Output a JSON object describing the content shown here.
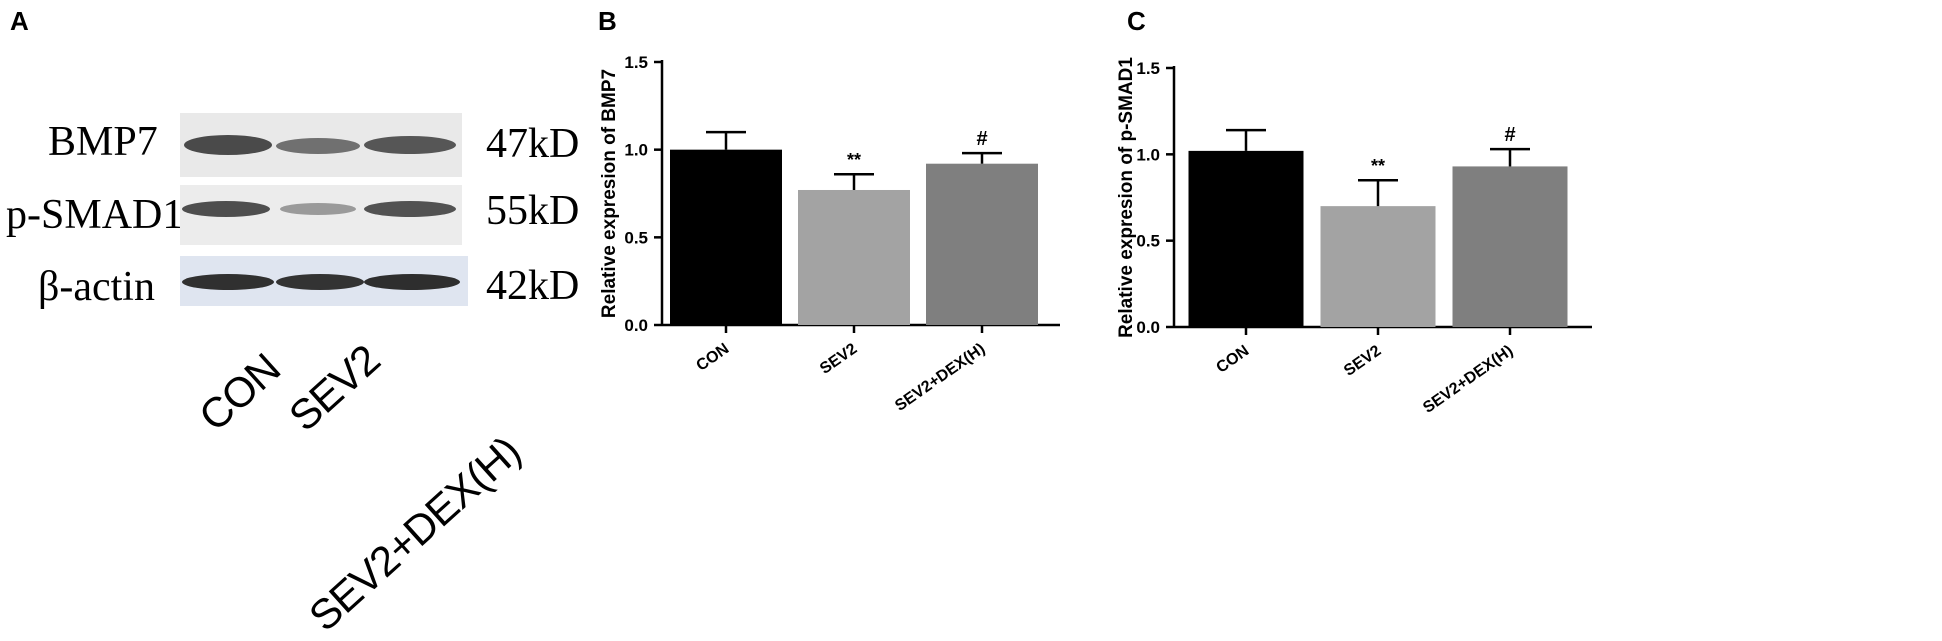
{
  "panel_a": {
    "letter": "A",
    "rows": [
      {
        "protein": "BMP7",
        "mw": "47kD"
      },
      {
        "protein": "p-SMAD1",
        "mw": "55kD"
      },
      {
        "protein": "β-actin",
        "mw": "42kD"
      }
    ],
    "lanes": [
      "CON",
      "SEV2",
      "SEV2+DEX(H)"
    ]
  },
  "panel_b": {
    "letter": "B"
  },
  "panel_c": {
    "letter": "C"
  },
  "colors": {
    "CON": "#000000",
    "SEV2": "#a3a3a3",
    "SEV2+DEX(H)": "#7f7f7f"
  },
  "chart_data": [
    {
      "type": "bar",
      "categories": [
        "CON",
        "SEV2",
        "SEV2+DEX(H)"
      ],
      "values": [
        1.0,
        0.77,
        0.92
      ],
      "errors": [
        0.1,
        0.09,
        0.06
      ],
      "annotations": [
        "",
        "**",
        "#"
      ],
      "ylabel": "Relative expresion of BMP7",
      "ylim": [
        0,
        1.5
      ],
      "yticks": [
        "0.0",
        "0.5",
        "1.0",
        "1.5"
      ],
      "grid": false
    },
    {
      "type": "bar",
      "categories": [
        "CON",
        "SEV2",
        "SEV2+DEX(H)"
      ],
      "values": [
        1.02,
        0.7,
        0.93
      ],
      "errors": [
        0.12,
        0.15,
        0.1
      ],
      "annotations": [
        "",
        "**",
        "#"
      ],
      "ylabel": "Relative expresion of p-SMAD1",
      "ylim": [
        0,
        1.5
      ],
      "yticks": [
        "0.0",
        "0.5",
        "1.0",
        "1.5"
      ],
      "grid": false
    }
  ]
}
